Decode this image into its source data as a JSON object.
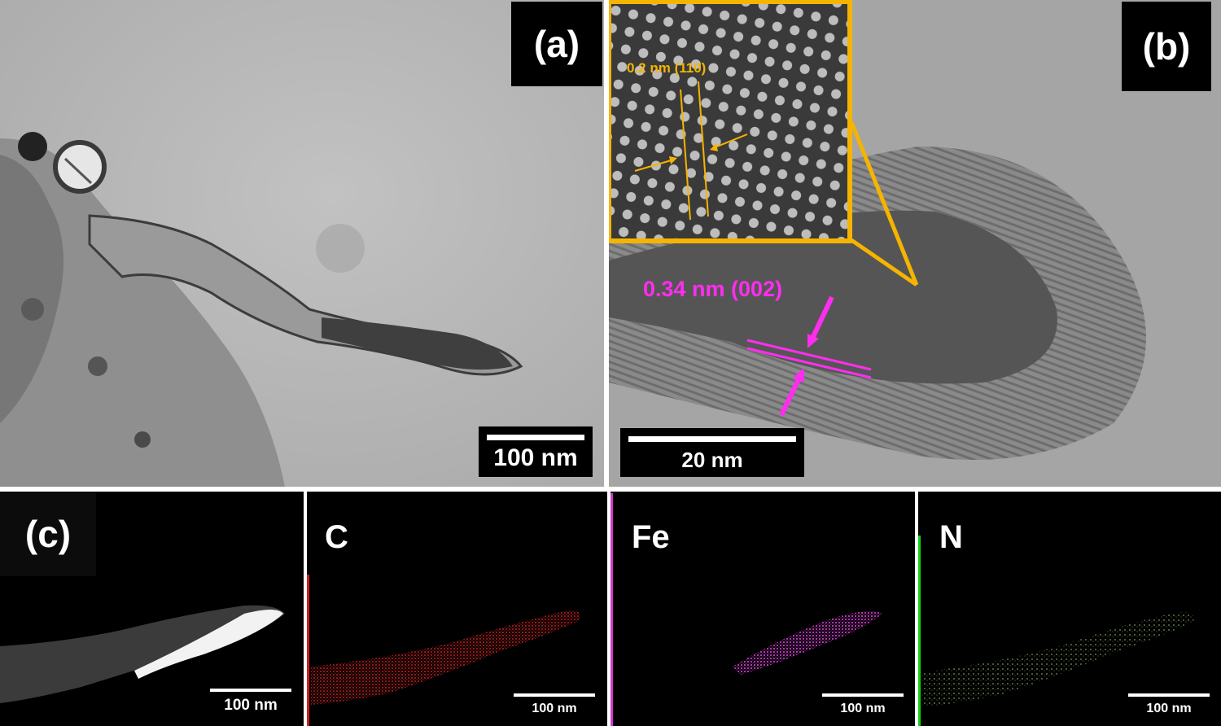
{
  "panels": {
    "a": {
      "label": "(a)",
      "scale": "100 nm"
    },
    "b": {
      "label": "(b)",
      "scale": "20 nm",
      "inset_annotation": "0.2 nm (110)",
      "annotation": "0.34 nm (002)"
    },
    "c": {
      "label": "(c)",
      "scale": "100 nm"
    },
    "map_c": {
      "label": "C",
      "scale": "100 nm"
    },
    "map_fe": {
      "label": "Fe",
      "scale": "100 nm"
    },
    "map_n": {
      "label": "N",
      "scale": "100 nm"
    }
  },
  "colors": {
    "inset_frame": "#f5b400",
    "lattice_annotation": "#ff2df0",
    "map_c": "#d21b1b",
    "map_fe": "#d23ad2",
    "map_n": "#17d017"
  }
}
